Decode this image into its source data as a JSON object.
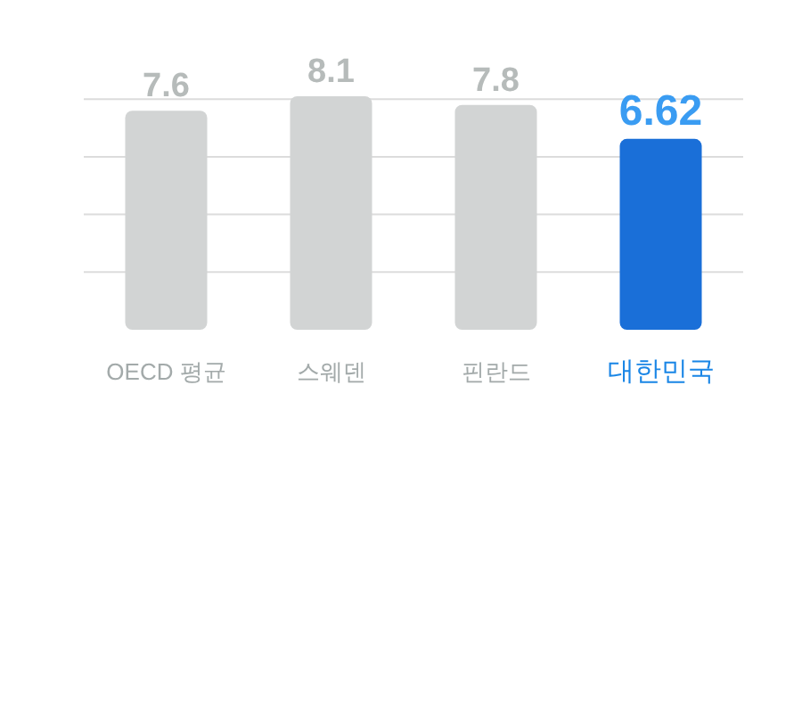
{
  "chart_data": {
    "type": "bar",
    "categories": [
      "OECD 평균",
      "스웨덴",
      "핀란드",
      "대한민국"
    ],
    "values": [
      7.6,
      8.1,
      7.8,
      6.62
    ],
    "colors": [
      "#d2d4d4",
      "#d2d4d4",
      "#d2d4d4",
      "#1a6fd8"
    ],
    "yticks": [
      {
        "value": 2,
        "label": null
      },
      {
        "value": 4,
        "label": null
      },
      {
        "value": 6,
        "label": null
      },
      {
        "value": 8,
        "label": null
      }
    ],
    "tick_labels": "x",
    "grid": "y",
    "data_labels": true
  }
}
